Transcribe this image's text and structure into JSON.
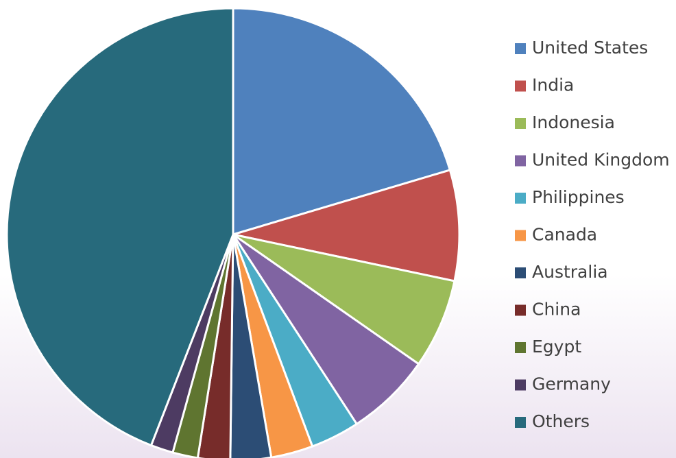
{
  "chart_data": {
    "type": "pie",
    "categories": [
      "United States",
      "India",
      "Indonesia",
      "United Kingdom",
      "Philippines",
      "Canada",
      "Australia",
      "China",
      "Egypt",
      "Germany",
      "Others"
    ],
    "values": [
      20.4,
      7.9,
      6.4,
      6.1,
      3.5,
      3.0,
      2.9,
      2.3,
      1.8,
      1.6,
      44.1
    ],
    "colors": [
      "#4f81bd",
      "#c0504d",
      "#9bbb59",
      "#8064a2",
      "#4bacc6",
      "#f79646",
      "#2c4d75",
      "#772c2a",
      "#5f7530",
      "#4d3b62",
      "#276a7c"
    ],
    "legend": "right"
  }
}
